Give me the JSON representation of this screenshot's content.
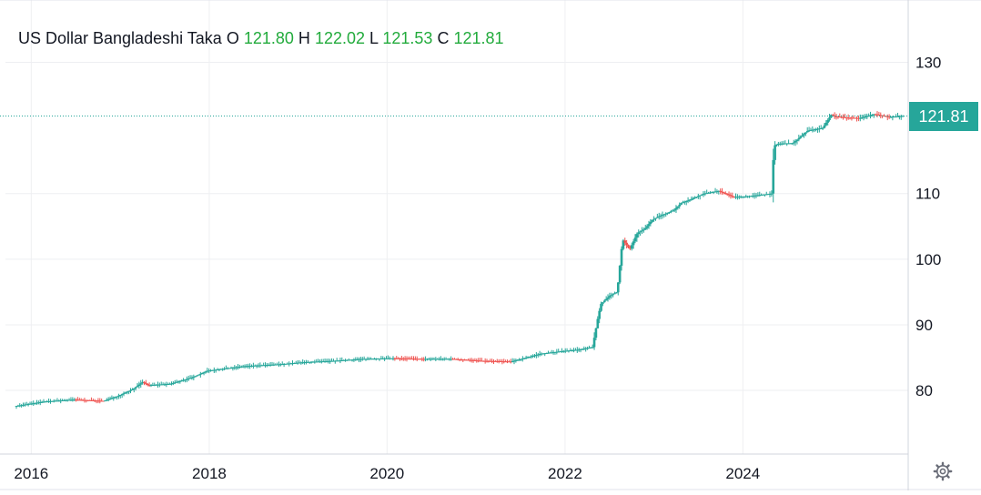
{
  "legend": {
    "symbol": "US Dollar Bangladeshi Taka",
    "o_label": "O",
    "o_value": "121.80",
    "h_label": "H",
    "h_value": "122.02",
    "l_label": "L",
    "l_value": "121.53",
    "c_label": "C",
    "c_value": "121.81"
  },
  "price_badge": "121.81",
  "icons": {
    "settings": "gear-icon"
  },
  "colors": {
    "up": "#26a69a",
    "down": "#ef5350",
    "legend_value": "#22ab3c",
    "last_price_line": "#26a69a"
  },
  "chart_data": {
    "type": "candlestick",
    "title": "US Dollar Bangladeshi Taka",
    "xlabel": "",
    "ylabel": "",
    "x_ticks": [
      "2016",
      "2018",
      "2020",
      "2022",
      "2024"
    ],
    "y_ticks": [
      80,
      90,
      100,
      110,
      130
    ],
    "ylim": [
      70.3,
      139.5
    ],
    "xlim": [
      "2015-11-01",
      "2025-11-10"
    ],
    "grid": true,
    "last_price": 121.81,
    "series": [
      {
        "x": [
          "2015-11-01",
          "2016-03-01",
          "2016-07-01",
          "2016-11-01",
          "2017-01-01",
          "2017-03-01",
          "2017-04-10",
          "2017-05-01",
          "2017-08-01",
          "2017-11-01",
          "2018-01-01",
          "2018-06-01",
          "2018-11-01",
          "2019-02-01",
          "2019-06-01",
          "2019-10-01",
          "2020-02-01",
          "2020-06-01",
          "2020-10-01",
          "2021-02-01",
          "2021-06-01",
          "2021-10-01",
          "2022-01-01",
          "2022-03-01",
          "2022-05-01",
          "2022-05-25",
          "2022-06-05",
          "2022-07-10",
          "2022-08-10",
          "2022-09-01",
          "2022-10-01",
          "2022-11-01",
          "2022-12-01",
          "2023-01-01",
          "2023-02-01",
          "2023-03-01",
          "2023-04-01",
          "2023-05-01",
          "2023-06-01",
          "2023-08-01",
          "2023-10-01",
          "2023-12-01",
          "2024-02-01",
          "2024-05-05",
          "2024-05-15",
          "2024-06-01",
          "2024-08-01",
          "2024-10-01",
          "2024-12-01",
          "2025-01-05",
          "2025-01-15",
          "2025-03-01",
          "2025-05-01",
          "2025-07-01",
          "2025-09-01",
          "2025-10-25"
        ],
        "close": [
          77.6,
          78.3,
          78.6,
          78.4,
          79.2,
          80.2,
          81.3,
          80.8,
          81.0,
          82.0,
          83.0,
          83.7,
          84.0,
          84.3,
          84.5,
          84.8,
          84.9,
          84.8,
          84.8,
          84.5,
          84.4,
          85.6,
          86.0,
          86.2,
          86.6,
          91.5,
          93.2,
          94.4,
          95.0,
          103.0,
          101.5,
          104.0,
          104.6,
          106.0,
          106.6,
          107.0,
          107.5,
          108.6,
          109.0,
          110.0,
          110.4,
          109.5,
          109.6,
          110.0,
          117.3,
          117.6,
          117.7,
          119.6,
          120.0,
          122.0,
          121.8,
          121.6,
          121.5,
          122.1,
          121.7,
          121.81
        ]
      }
    ]
  }
}
